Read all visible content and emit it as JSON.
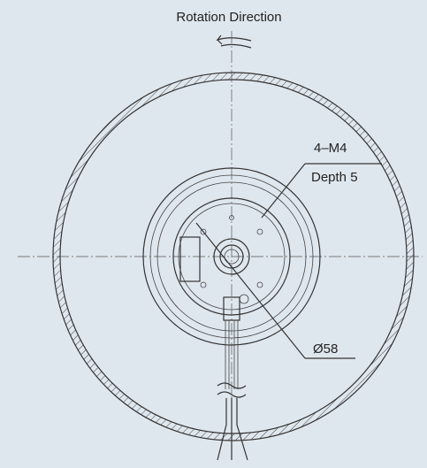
{
  "drawing": {
    "title": "Rotation Direction",
    "callouts": [
      {
        "line1": "4–M4",
        "line2": "Depth 5"
      },
      {
        "line1": "Ø58"
      }
    ]
  }
}
